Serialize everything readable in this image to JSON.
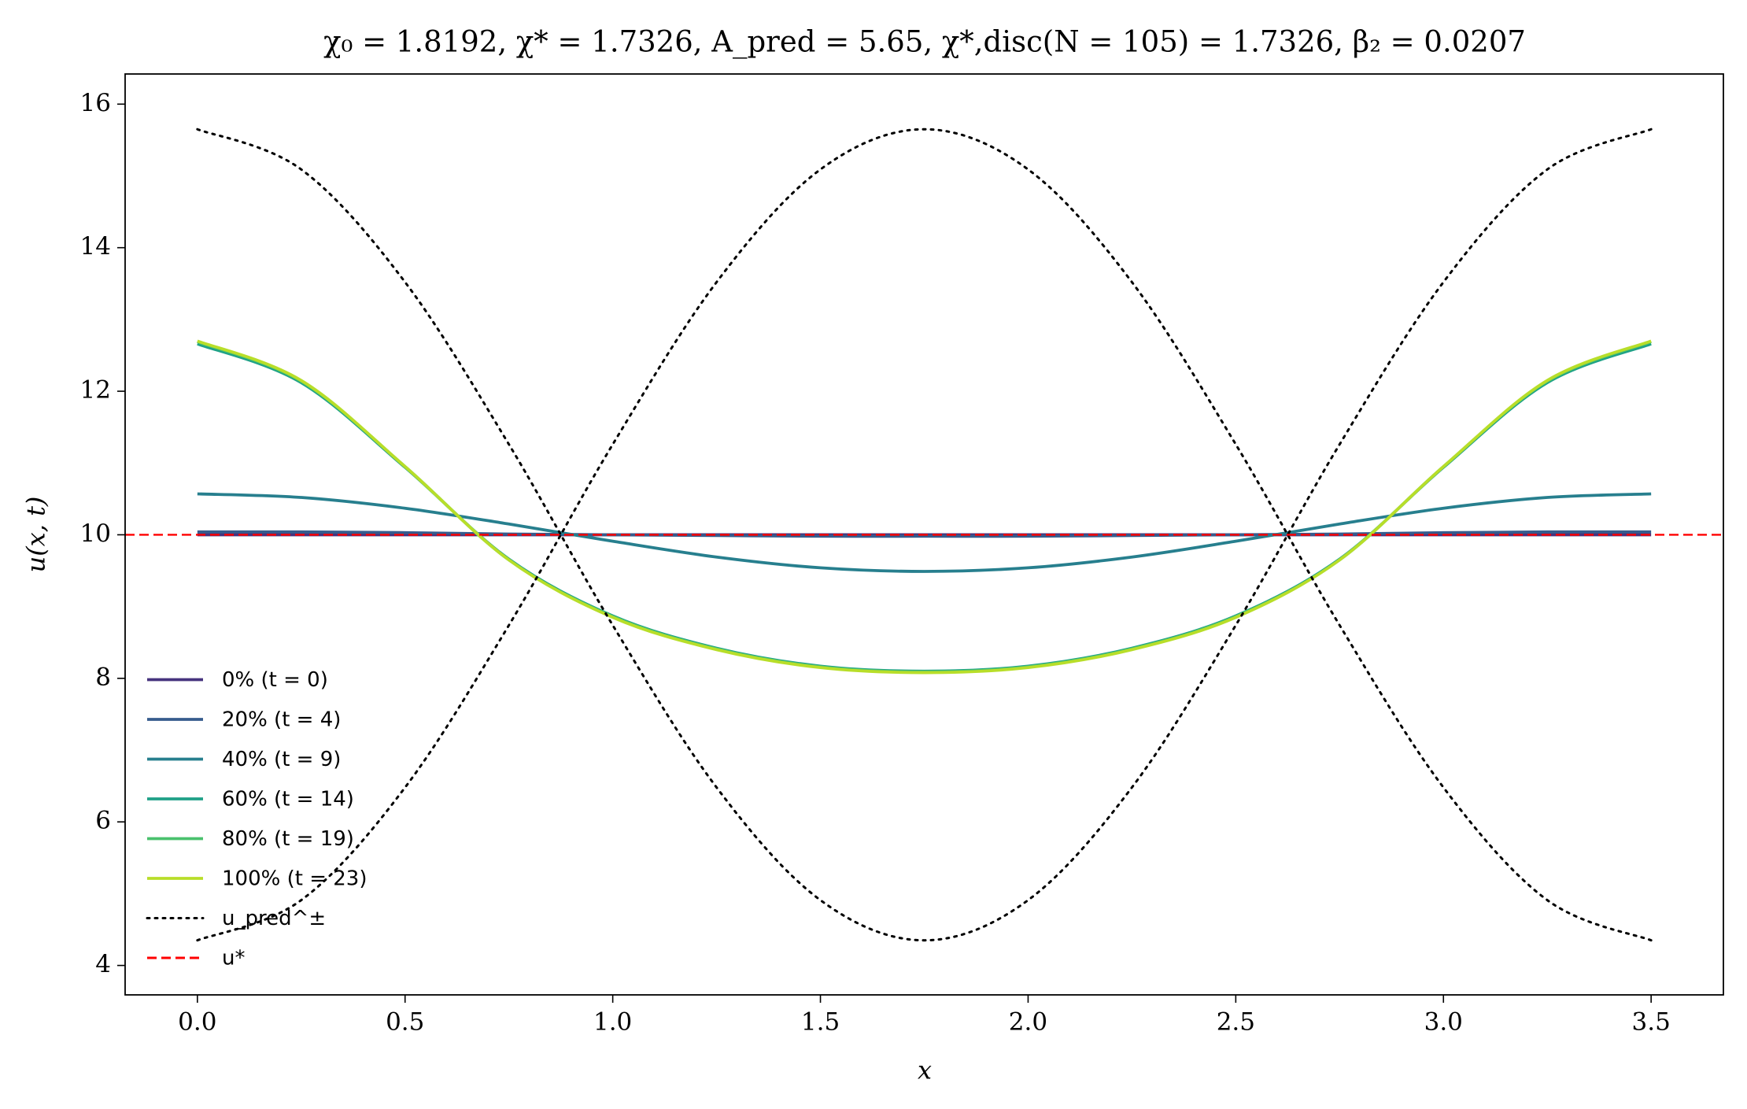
{
  "chart_data": {
    "type": "line",
    "title": "χ₀ = 1.8192,  χ* = 1.7326,  A_pred = 5.65,  χ*,disc(N = 105) = 1.7326,  β₂ = 0.0207",
    "x_label": "x",
    "y_label": "u(x, t)",
    "x": [
      0,
      0.25,
      0.5,
      0.75,
      1.0,
      1.25,
      1.5,
      1.75,
      2.0,
      2.25,
      2.5,
      2.75,
      3.0,
      3.25,
      3.5
    ],
    "xlim": [
      -0.174,
      3.674
    ],
    "ylim": [
      3.59,
      16.42
    ],
    "xticks": [
      {
        "value": 0,
        "label": "0.0"
      },
      0.5,
      {
        "value": 1,
        "label": "1.0"
      },
      1.5,
      {
        "value": 2,
        "label": "2.0"
      },
      2.5,
      {
        "value": 3,
        "label": "3.0"
      },
      3.5
    ],
    "yticks": [
      4,
      6,
      8,
      10,
      12,
      14,
      16
    ],
    "grid": false,
    "legend": "lower left",
    "series": [
      {
        "name": "0% (t = 0)",
        "color": "#46337e",
        "style": "solid",
        "values": [
          10,
          10,
          10,
          10,
          10,
          10,
          10,
          10,
          10,
          10,
          10,
          10,
          10,
          10,
          10
        ]
      },
      {
        "name": "20% (t = 4)",
        "color": "#365c8d",
        "style": "solid",
        "values": [
          10.04,
          10.04,
          10.03,
          10.01,
          10.0,
          9.99,
          9.98,
          9.98,
          9.98,
          9.99,
          10.0,
          10.01,
          10.03,
          10.04,
          10.04
        ]
      },
      {
        "name": "40% (t = 9)",
        "color": "#277f8e",
        "style": "solid",
        "values": [
          10.57,
          10.52,
          10.37,
          10.15,
          9.91,
          9.69,
          9.54,
          9.49,
          9.54,
          9.69,
          9.91,
          10.15,
          10.37,
          10.52,
          10.57
        ]
      },
      {
        "name": "60% (t = 14)",
        "color": "#1fa187",
        "style": "solid",
        "values": [
          12.66,
          12.12,
          10.94,
          9.66,
          8.87,
          8.42,
          8.17,
          8.1,
          8.17,
          8.42,
          8.87,
          9.66,
          10.94,
          12.12,
          12.66
        ]
      },
      {
        "name": "80% (t = 19)",
        "color": "#4ac16d",
        "style": "solid",
        "values": [
          12.69,
          12.14,
          10.95,
          9.65,
          8.86,
          8.41,
          8.16,
          8.09,
          8.16,
          8.41,
          8.86,
          9.65,
          10.95,
          12.14,
          12.69
        ]
      },
      {
        "name": "100% (t = 23)",
        "color": "#b8de29",
        "style": "solid",
        "values": [
          12.7,
          12.15,
          10.95,
          9.65,
          8.85,
          8.4,
          8.15,
          8.08,
          8.15,
          8.4,
          8.85,
          9.65,
          10.95,
          12.15,
          12.7
        ]
      },
      {
        "name": "u_pred^±",
        "color": "#000000",
        "style": "dotted",
        "values": [
          15.65,
          15.09,
          13.52,
          11.26,
          8.74,
          6.48,
          4.91,
          4.35,
          4.91,
          6.48,
          8.74,
          11.26,
          13.52,
          15.09,
          15.65
        ]
      },
      {
        "color": "#000000",
        "style": "dotted",
        "values": [
          4.35,
          4.91,
          6.48,
          8.74,
          11.26,
          13.52,
          15.09,
          15.65,
          15.09,
          13.52,
          11.26,
          8.74,
          6.48,
          4.91,
          4.35
        ]
      }
    ],
    "hlines": [
      {
        "name": "u*",
        "y": 10,
        "color": "#ff0000",
        "style": "dashed"
      }
    ]
  }
}
